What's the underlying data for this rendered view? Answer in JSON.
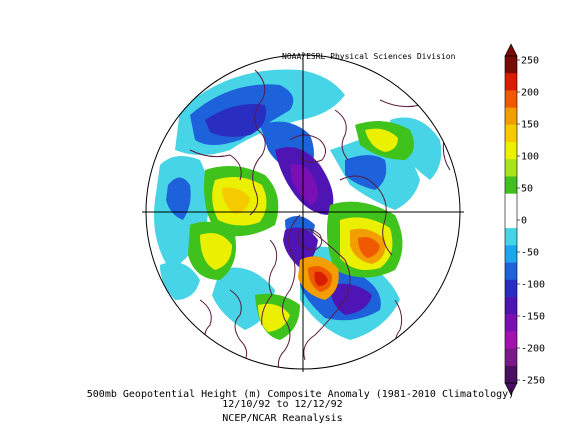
{
  "credit": "NOAA/ESRL Physical Sciences Division",
  "caption": {
    "line1": "500mb Geopotential Height (m) Composite Anomaly (1981-2010 Climatology)",
    "line2": "12/10/92  to 12/12/92",
    "line3": "NCEP/NCAR Reanalysis"
  },
  "colorbar": {
    "labels": [
      "250",
      "200",
      "150",
      "100",
      "50",
      "0",
      "-50",
      "-100",
      "-150",
      "-200",
      "-250"
    ],
    "colors": [
      "#7a0a05",
      "#d81d00",
      "#ef5a00",
      "#f29e00",
      "#f5cb00",
      "#eaf000",
      "#a8e41a",
      "#3fc21c",
      "#ffffff",
      "#ffffff",
      "#46d4e6",
      "#1aa6f0",
      "#1d62da",
      "#2a2ec0",
      "#4f15b4",
      "#7a10b3",
      "#a510b0",
      "#7a1a8a",
      "#4a1060"
    ]
  },
  "map": {
    "ocean_color": "#ffffff",
    "anomaly_colors": {
      "strong_negative": "#7a10b3",
      "negative": "#2a2ec0",
      "weak_negative": "#1d62da",
      "slight_negative": "#46d4e6",
      "slight_positive": "#3fc21c",
      "positive": "#eaf000",
      "strong_positive": "#f29e00",
      "very_strong_positive": "#d81d00"
    }
  }
}
